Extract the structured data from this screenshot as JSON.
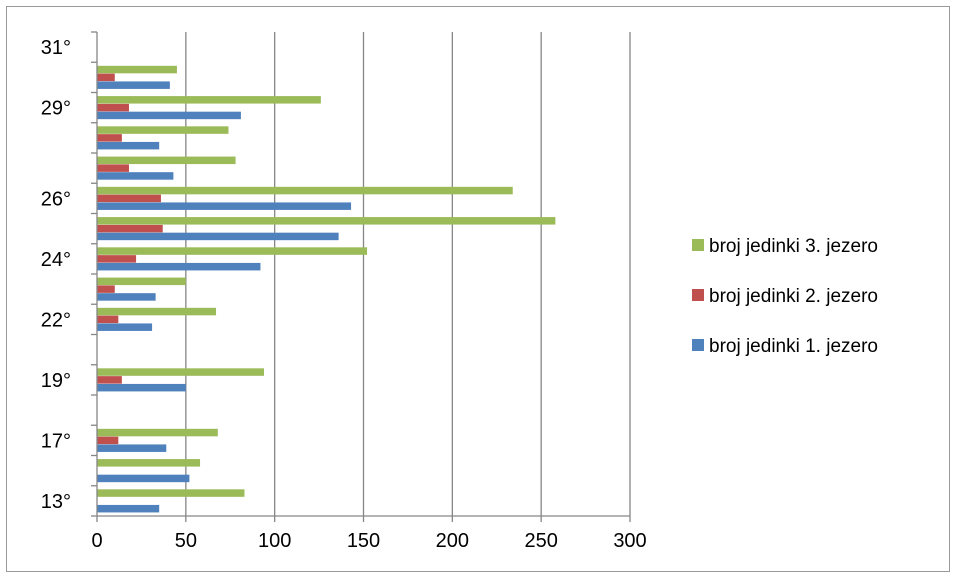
{
  "chart_data": {
    "type": "bar",
    "orientation": "horizontal",
    "title": "",
    "xlabel": "",
    "ylabel": "",
    "xlim": [
      0,
      300
    ],
    "x_ticks": [
      0,
      50,
      100,
      150,
      200,
      250,
      300
    ],
    "grid": "vertical",
    "legend_position": "right",
    "categories": [
      "13°",
      "",
      "17°",
      "",
      "19°",
      "",
      "22°",
      "",
      "24°",
      "",
      "26°",
      "",
      "",
      "29°",
      "",
      "31°"
    ],
    "series": [
      {
        "name": "broj jedinki 3. jezero",
        "color": "#9bbb59",
        "values": [
          83,
          58,
          68,
          null,
          94,
          null,
          67,
          50,
          152,
          258,
          234,
          78,
          74,
          126,
          45,
          null
        ]
      },
      {
        "name": "broj jedinki 2. jezero",
        "color": "#c0504d",
        "values": [
          null,
          null,
          12,
          null,
          14,
          null,
          12,
          10,
          22,
          37,
          36,
          18,
          14,
          18,
          10,
          null
        ]
      },
      {
        "name": "broj jedinki  1. jezero",
        "color": "#4f81bd",
        "values": [
          35,
          52,
          39,
          null,
          50,
          null,
          31,
          33,
          92,
          136,
          143,
          43,
          35,
          81,
          41,
          null
        ]
      }
    ]
  }
}
